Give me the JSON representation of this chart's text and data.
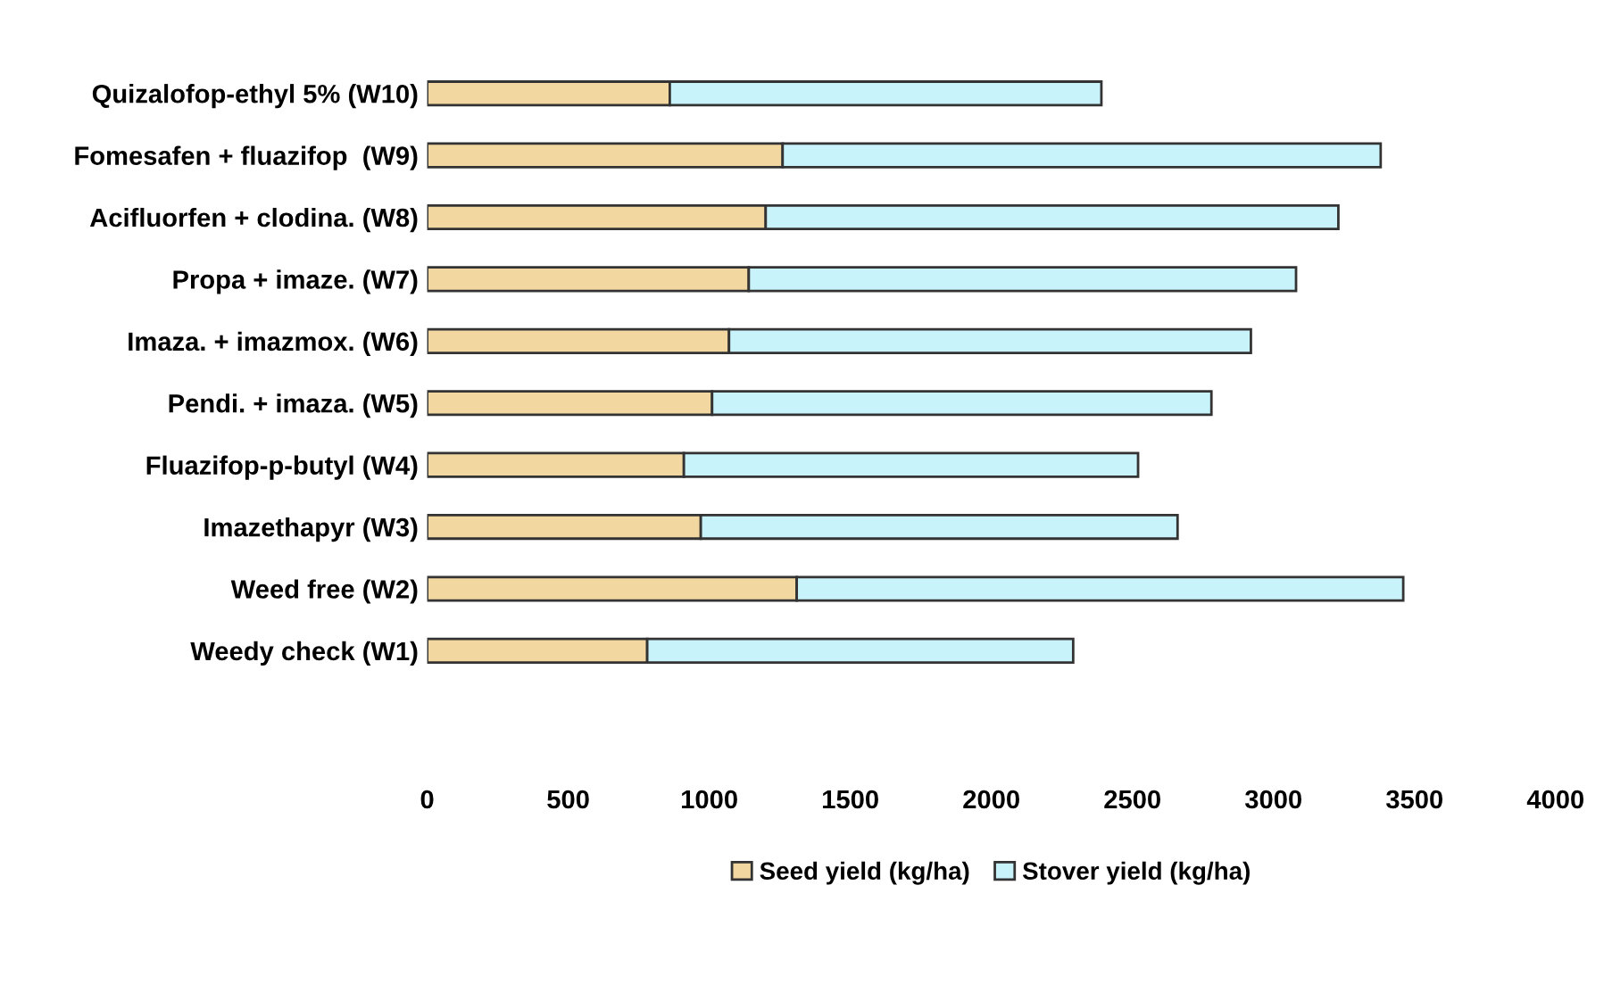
{
  "chart_data": {
    "type": "bar",
    "orientation": "horizontal",
    "stacked": true,
    "categories": [
      "Quizalofop-ethyl 5% (W10)",
      "Fomesafen + fluazifop  (W9)",
      "Acifluorfen + clodina. (W8)",
      "Propa + imaze. (W7)",
      "Imaza. + imazmox. (W6)",
      "Pendi. + imaza. (W5)",
      "Fluazifop-p-butyl (W4)",
      "Imazethapyr (W3)",
      "Weed free (W2)",
      "Weedy check (W1)"
    ],
    "series": [
      {
        "name": "Seed yield (kg/ha)",
        "color": "#f3d7a0",
        "values": [
          860,
          1260,
          1200,
          1140,
          1070,
          1010,
          910,
          970,
          1310,
          780
        ]
      },
      {
        "name": "Stover yield (kg/ha)",
        "color": "#c8f3fa",
        "values": [
          1530,
          2120,
          2030,
          1940,
          1850,
          1770,
          1610,
          1690,
          2150,
          1510
        ]
      }
    ],
    "xlim": [
      0,
      4000
    ],
    "xticks": [
      0,
      500,
      1000,
      1500,
      2000,
      2500,
      3000,
      3500,
      4000
    ],
    "grid": false,
    "legend": "bottom"
  }
}
